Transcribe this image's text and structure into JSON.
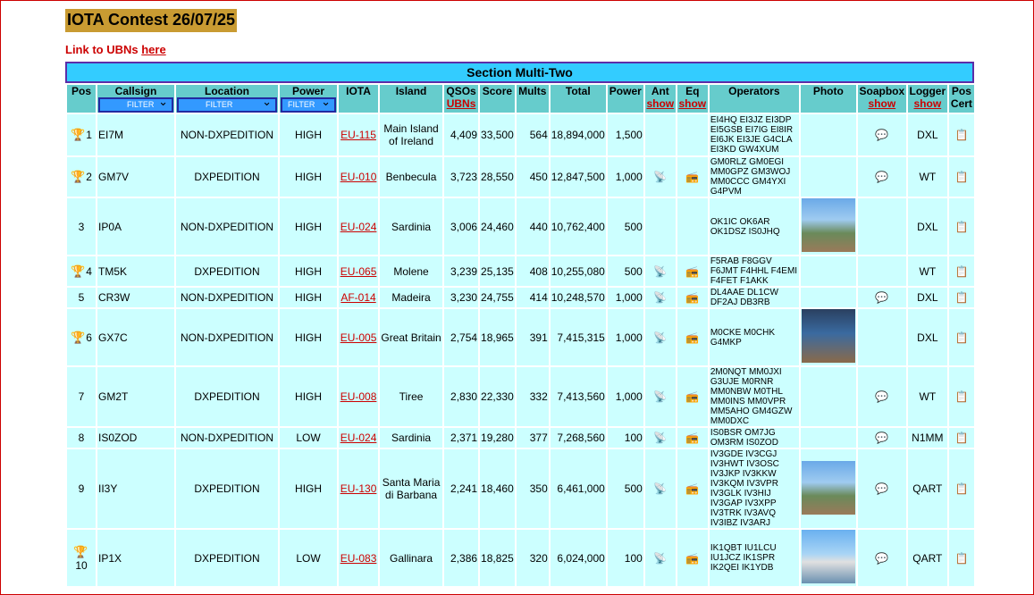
{
  "page_title": "IOTA Contest 26/07/25",
  "ubn_link": {
    "prefix": "Link to UBNs ",
    "link_text": "here"
  },
  "section_title": "Section Multi-Two",
  "headers": {
    "pos": "Pos",
    "callsign": "Callsign",
    "location": "Location",
    "power_cat": "Power",
    "iota": "IOTA",
    "island": "Island",
    "qsos": "QSOs",
    "qsos_link": "UBNs",
    "score": "Score",
    "mults": "Mults",
    "total": "Total",
    "power": "Power",
    "ant": "Ant",
    "ant_link": "show",
    "eq": "Eq",
    "eq_link": "show",
    "operators": "Operators",
    "photo": "Photo",
    "soapbox": "Soapbox",
    "soapbox_link": "show",
    "logger": "Logger",
    "logger_link": "show",
    "pos_cert": "Pos Cert"
  },
  "filter_label": "FILTER",
  "rows": [
    {
      "pos": "1",
      "trophy": true,
      "call": "EI7M",
      "loc": "NON-DXPEDITION",
      "pcat": "HIGH",
      "iota": "EU-115",
      "island": "Main Island of Ireland",
      "qsos": "4,409",
      "score": "33,500",
      "mults": "564",
      "total": "18,894,000",
      "power": "1,500",
      "ant": false,
      "eq": false,
      "ops": "EI4HQ EI3JZ EI3DP EI5GSB EI7IG EI8IR EI6JK EI3JE G4CLA EI3KD GW4XUM",
      "photo": "",
      "soapbox": true,
      "logger": "DXL"
    },
    {
      "pos": "2",
      "trophy": true,
      "call": "GM7V",
      "loc": "DXPEDITION",
      "pcat": "HIGH",
      "iota": "EU-010",
      "island": "Benbecula",
      "qsos": "3,723",
      "score": "28,550",
      "mults": "450",
      "total": "12,847,500",
      "power": "1,000",
      "ant": true,
      "eq": true,
      "ops": "GM0RLZ GM0EGI MM0GPZ GM3WOJ MM0CCC GM4YXI G4PVM",
      "photo": "",
      "soapbox": true,
      "logger": "WT"
    },
    {
      "pos": "3",
      "trophy": false,
      "call": "IP0A",
      "loc": "NON-DXPEDITION",
      "pcat": "HIGH",
      "iota": "EU-024",
      "island": "Sardinia",
      "qsos": "3,006",
      "score": "24,460",
      "mults": "440",
      "total": "10,762,400",
      "power": "500",
      "ant": false,
      "eq": false,
      "ops": "OK1IC OK6AR OK1DSZ IS0JHQ",
      "photo": "outdoor",
      "soapbox": false,
      "logger": "DXL"
    },
    {
      "pos": "4",
      "trophy": true,
      "call": "TM5K",
      "loc": "DXPEDITION",
      "pcat": "HIGH",
      "iota": "EU-065",
      "island": "Molene",
      "qsos": "3,239",
      "score": "25,135",
      "mults": "408",
      "total": "10,255,080",
      "power": "500",
      "ant": true,
      "eq": true,
      "ops": "F5RAB F8GGV F6JMT F4HHL F4EMI F4FET F1AKK",
      "photo": "",
      "soapbox": false,
      "logger": "WT"
    },
    {
      "pos": "5",
      "trophy": false,
      "call": "CR3W",
      "loc": "NON-DXPEDITION",
      "pcat": "HIGH",
      "iota": "AF-014",
      "island": "Madeira",
      "qsos": "3,230",
      "score": "24,755",
      "mults": "414",
      "total": "10,248,570",
      "power": "1,000",
      "ant": true,
      "eq": true,
      "ops": "DL4AAE DL1CW DF2AJ DB3RB",
      "photo": "",
      "soapbox": true,
      "logger": "DXL"
    },
    {
      "pos": "6",
      "trophy": true,
      "call": "GX7C",
      "loc": "NON-DXPEDITION",
      "pcat": "HIGH",
      "iota": "EU-005",
      "island": "Great Britain",
      "qsos": "2,754",
      "score": "18,965",
      "mults": "391",
      "total": "7,415,315",
      "power": "1,000",
      "ant": true,
      "eq": true,
      "ops": "M0CKE M0CHK G4MKP",
      "photo": "indoor",
      "soapbox": false,
      "logger": "DXL"
    },
    {
      "pos": "7",
      "trophy": false,
      "call": "GM2T",
      "loc": "DXPEDITION",
      "pcat": "HIGH",
      "iota": "EU-008",
      "island": "Tiree",
      "qsos": "2,830",
      "score": "22,330",
      "mults": "332",
      "total": "7,413,560",
      "power": "1,000",
      "ant": true,
      "eq": true,
      "ops": "2M0NQT MM0JXI G3UJE M0RNR MM0NBW M0THL MM0INS MM0VPR MM5AHO GM4GZW MM0DXC",
      "photo": "",
      "soapbox": true,
      "logger": "WT"
    },
    {
      "pos": "8",
      "trophy": false,
      "call": "IS0ZOD",
      "loc": "NON-DXPEDITION",
      "pcat": "LOW",
      "iota": "EU-024",
      "island": "Sardinia",
      "qsos": "2,371",
      "score": "19,280",
      "mults": "377",
      "total": "7,268,560",
      "power": "100",
      "ant": true,
      "eq": true,
      "ops": "IS0BSR OM7JG OM3RM IS0ZOD",
      "photo": "",
      "soapbox": true,
      "logger": "N1MM"
    },
    {
      "pos": "9",
      "trophy": false,
      "call": "II3Y",
      "loc": "DXPEDITION",
      "pcat": "HIGH",
      "iota": "EU-130",
      "island": "Santa Maria di Barbana",
      "qsos": "2,241",
      "score": "18,460",
      "mults": "350",
      "total": "6,461,000",
      "power": "500",
      "ant": true,
      "eq": true,
      "ops": "IV3GDE IV3CGJ IV3HWT IV3OSC IV3JKP IV3KKW IV3KQM IV3VPR IV3GLK IV3HIJ IV3GAP IV3XPP IV3TRK IV3AVQ IV3IBZ IV3ARJ",
      "photo": "outdoor",
      "soapbox": true,
      "logger": "QART"
    },
    {
      "pos": "10",
      "trophy": true,
      "call": "IP1X",
      "loc": "DXPEDITION",
      "pcat": "LOW",
      "iota": "EU-083",
      "island": "Gallinara",
      "qsos": "2,386",
      "score": "18,825",
      "mults": "320",
      "total": "6,024,000",
      "power": "100",
      "ant": true,
      "eq": true,
      "ops": "IK1QBT IU1LCU IU1JCZ IK1SPR IK2QEI IK1YDB",
      "photo": "harbor",
      "soapbox": true,
      "logger": "QART"
    }
  ],
  "icons": {
    "trophy": "trophy-icon",
    "antenna": "antenna-icon",
    "radio": "radio-icon",
    "soapbox": "speech-bubble-icon",
    "certificate": "certificate-icon"
  },
  "colors": {
    "section_bg": "#33ccff",
    "header_bg": "#66cccc",
    "cell_bg": "#ccffff",
    "title_bg": "#c99b32",
    "link": "#cc0000"
  }
}
